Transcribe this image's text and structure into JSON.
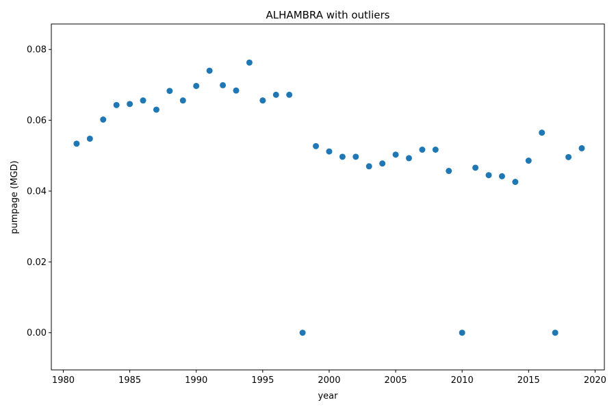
{
  "chart_data": {
    "type": "scatter",
    "title": "ALHAMBRA with outliers",
    "xlabel": "year",
    "ylabel": "pumpage (MGD)",
    "xlim": [
      1979.1,
      2020.7
    ],
    "ylim": [
      -0.0105,
      0.0872
    ],
    "xticks": [
      1980,
      1985,
      1990,
      1995,
      2000,
      2005,
      2010,
      2015,
      2020
    ],
    "xtick_labels": [
      "1980",
      "1985",
      "1990",
      "1995",
      "2000",
      "2005",
      "2010",
      "2015",
      "2020"
    ],
    "yticks": [
      0.0,
      0.02,
      0.04,
      0.06,
      0.08
    ],
    "ytick_labels": [
      "0.00",
      "0.02",
      "0.04",
      "0.06",
      "0.08"
    ],
    "grid": false,
    "marker_color": "#1f77b4",
    "x": [
      1981,
      1982,
      1983,
      1984,
      1985,
      1986,
      1987,
      1988,
      1989,
      1990,
      1991,
      1992,
      1993,
      1994,
      1995,
      1996,
      1997,
      1998,
      1999,
      2000,
      2001,
      2002,
      2003,
      2004,
      2005,
      2006,
      2007,
      2008,
      2009,
      2010,
      2011,
      2012,
      2013,
      2014,
      2015,
      2016,
      2017,
      2018,
      2019
    ],
    "y": [
      0.0534,
      0.0548,
      0.0602,
      0.0643,
      0.0646,
      0.0656,
      0.063,
      0.0683,
      0.0656,
      0.0697,
      0.074,
      0.0699,
      0.0684,
      0.0763,
      0.0656,
      0.0672,
      0.0672,
      0.0,
      0.0527,
      0.0512,
      0.0497,
      0.0497,
      0.047,
      0.0478,
      0.0503,
      0.0493,
      0.0517,
      0.0517,
      0.0457,
      0.0,
      0.0466,
      0.0445,
      0.0442,
      0.0426,
      0.0486,
      0.0565,
      0.0,
      0.0496,
      0.0521
    ]
  }
}
